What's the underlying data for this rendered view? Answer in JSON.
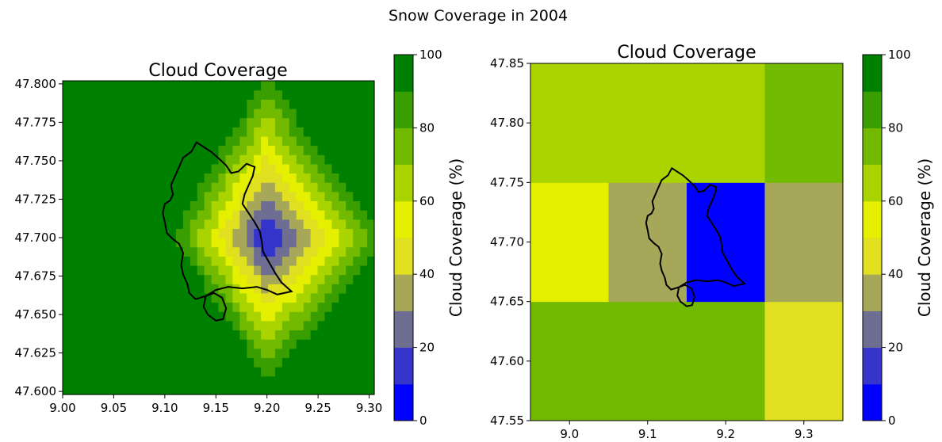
{
  "figure": {
    "title": "Snow Coverage in 2004"
  },
  "colormap": {
    "bounds": [
      0,
      10,
      20,
      30,
      40,
      50,
      60,
      70,
      80,
      90,
      100
    ],
    "colors": [
      "#0000ff",
      "#3535cc",
      "#6e6e93",
      "#a7a75a",
      "#e0e021",
      "#e5ef00",
      "#aad400",
      "#72ba00",
      "#399f00",
      "#008000"
    ]
  },
  "chart_data": [
    {
      "type": "heatmap",
      "title": "Cloud Coverage",
      "xlim": [
        9.0,
        9.305
      ],
      "ylim": [
        47.598,
        47.802
      ],
      "xticks": [
        "9.00",
        "9.05",
        "9.10",
        "9.15",
        "9.20",
        "9.25",
        "9.30"
      ],
      "yticks": [
        "47.600",
        "47.625",
        "47.650",
        "47.675",
        "47.700",
        "47.725",
        "47.750",
        "47.775",
        "47.800"
      ],
      "grid": "fine",
      "center": [
        9.2,
        47.7
      ],
      "overlay": "lake-outline",
      "colorbar": {
        "label": "Cloud Coverage (%)",
        "ticks": [
          "0",
          "20",
          "40",
          "60",
          "80",
          "100"
        ],
        "range": [
          0,
          100
        ]
      }
    },
    {
      "type": "heatmap",
      "title": "Cloud Coverage",
      "xlim": [
        8.95,
        9.35
      ],
      "ylim": [
        47.55,
        47.85
      ],
      "xticks": [
        "9.0",
        "9.1",
        "9.2",
        "9.3"
      ],
      "yticks": [
        "47.55",
        "47.60",
        "47.65",
        "47.70",
        "47.75",
        "47.80",
        "47.85"
      ],
      "grid": "coarse",
      "x_edges": [
        8.95,
        9.05,
        9.15,
        9.25,
        9.35
      ],
      "y_edges": [
        47.55,
        47.65,
        47.75,
        47.85
      ],
      "cells": [
        [
          73,
          73,
          73,
          48
        ],
        [
          55,
          37,
          5,
          37
        ],
        [
          65,
          65,
          65,
          75
        ]
      ],
      "overlay": "lake-outline",
      "colorbar": {
        "label": "Cloud Coverage (%)",
        "ticks": [
          "0",
          "20",
          "40",
          "60",
          "80",
          "100"
        ],
        "range": [
          0,
          100
        ]
      }
    }
  ]
}
